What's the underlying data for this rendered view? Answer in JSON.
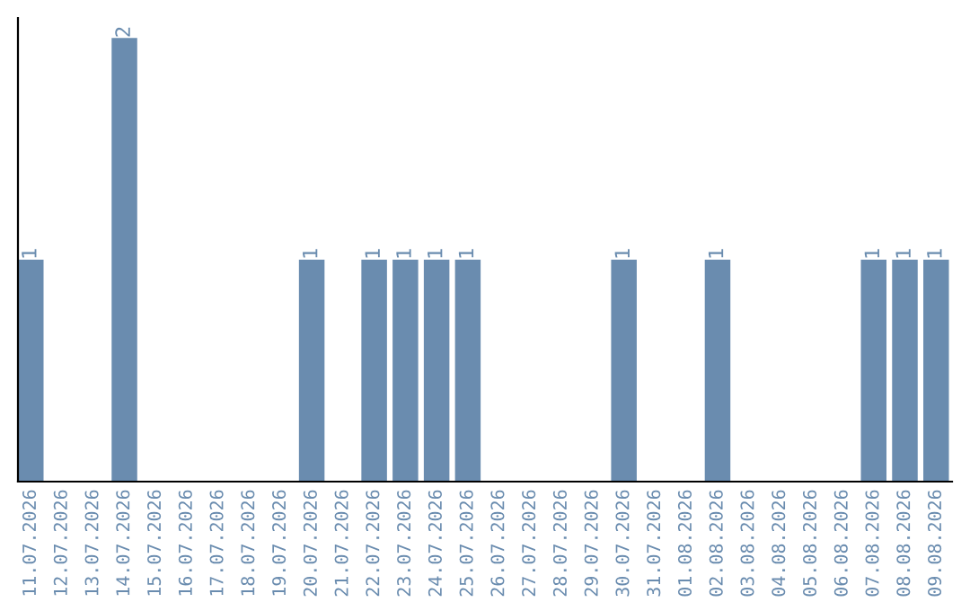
{
  "chart_data": {
    "type": "bar",
    "categories": [
      "11.07.2026",
      "12.07.2026",
      "13.07.2026",
      "14.07.2026",
      "15.07.2026",
      "16.07.2026",
      "17.07.2026",
      "18.07.2026",
      "19.07.2026",
      "20.07.2026",
      "21.07.2026",
      "22.07.2026",
      "23.07.2026",
      "24.07.2026",
      "25.07.2026",
      "26.07.2026",
      "27.07.2026",
      "28.07.2026",
      "29.07.2026",
      "30.07.2026",
      "31.07.2026",
      "01.08.2026",
      "02.08.2026",
      "03.08.2026",
      "04.08.2026",
      "05.08.2026",
      "06.08.2026",
      "07.08.2026",
      "08.08.2026",
      "09.08.2026"
    ],
    "values": [
      1,
      0,
      0,
      2,
      0,
      0,
      0,
      0,
      0,
      1,
      0,
      1,
      1,
      1,
      1,
      0,
      0,
      0,
      0,
      1,
      0,
      0,
      1,
      0,
      0,
      0,
      0,
      1,
      1,
      1
    ],
    "value_labels": [
      "1",
      null,
      null,
      "2",
      null,
      null,
      null,
      null,
      null,
      "1",
      null,
      "1",
      "1",
      "1",
      "1",
      null,
      null,
      null,
      null,
      "1",
      null,
      null,
      "1",
      null,
      null,
      null,
      null,
      "1",
      "1",
      "1"
    ],
    "color": "#6a8caf",
    "tick_labels": "x",
    "grid": false,
    "legend": false
  }
}
